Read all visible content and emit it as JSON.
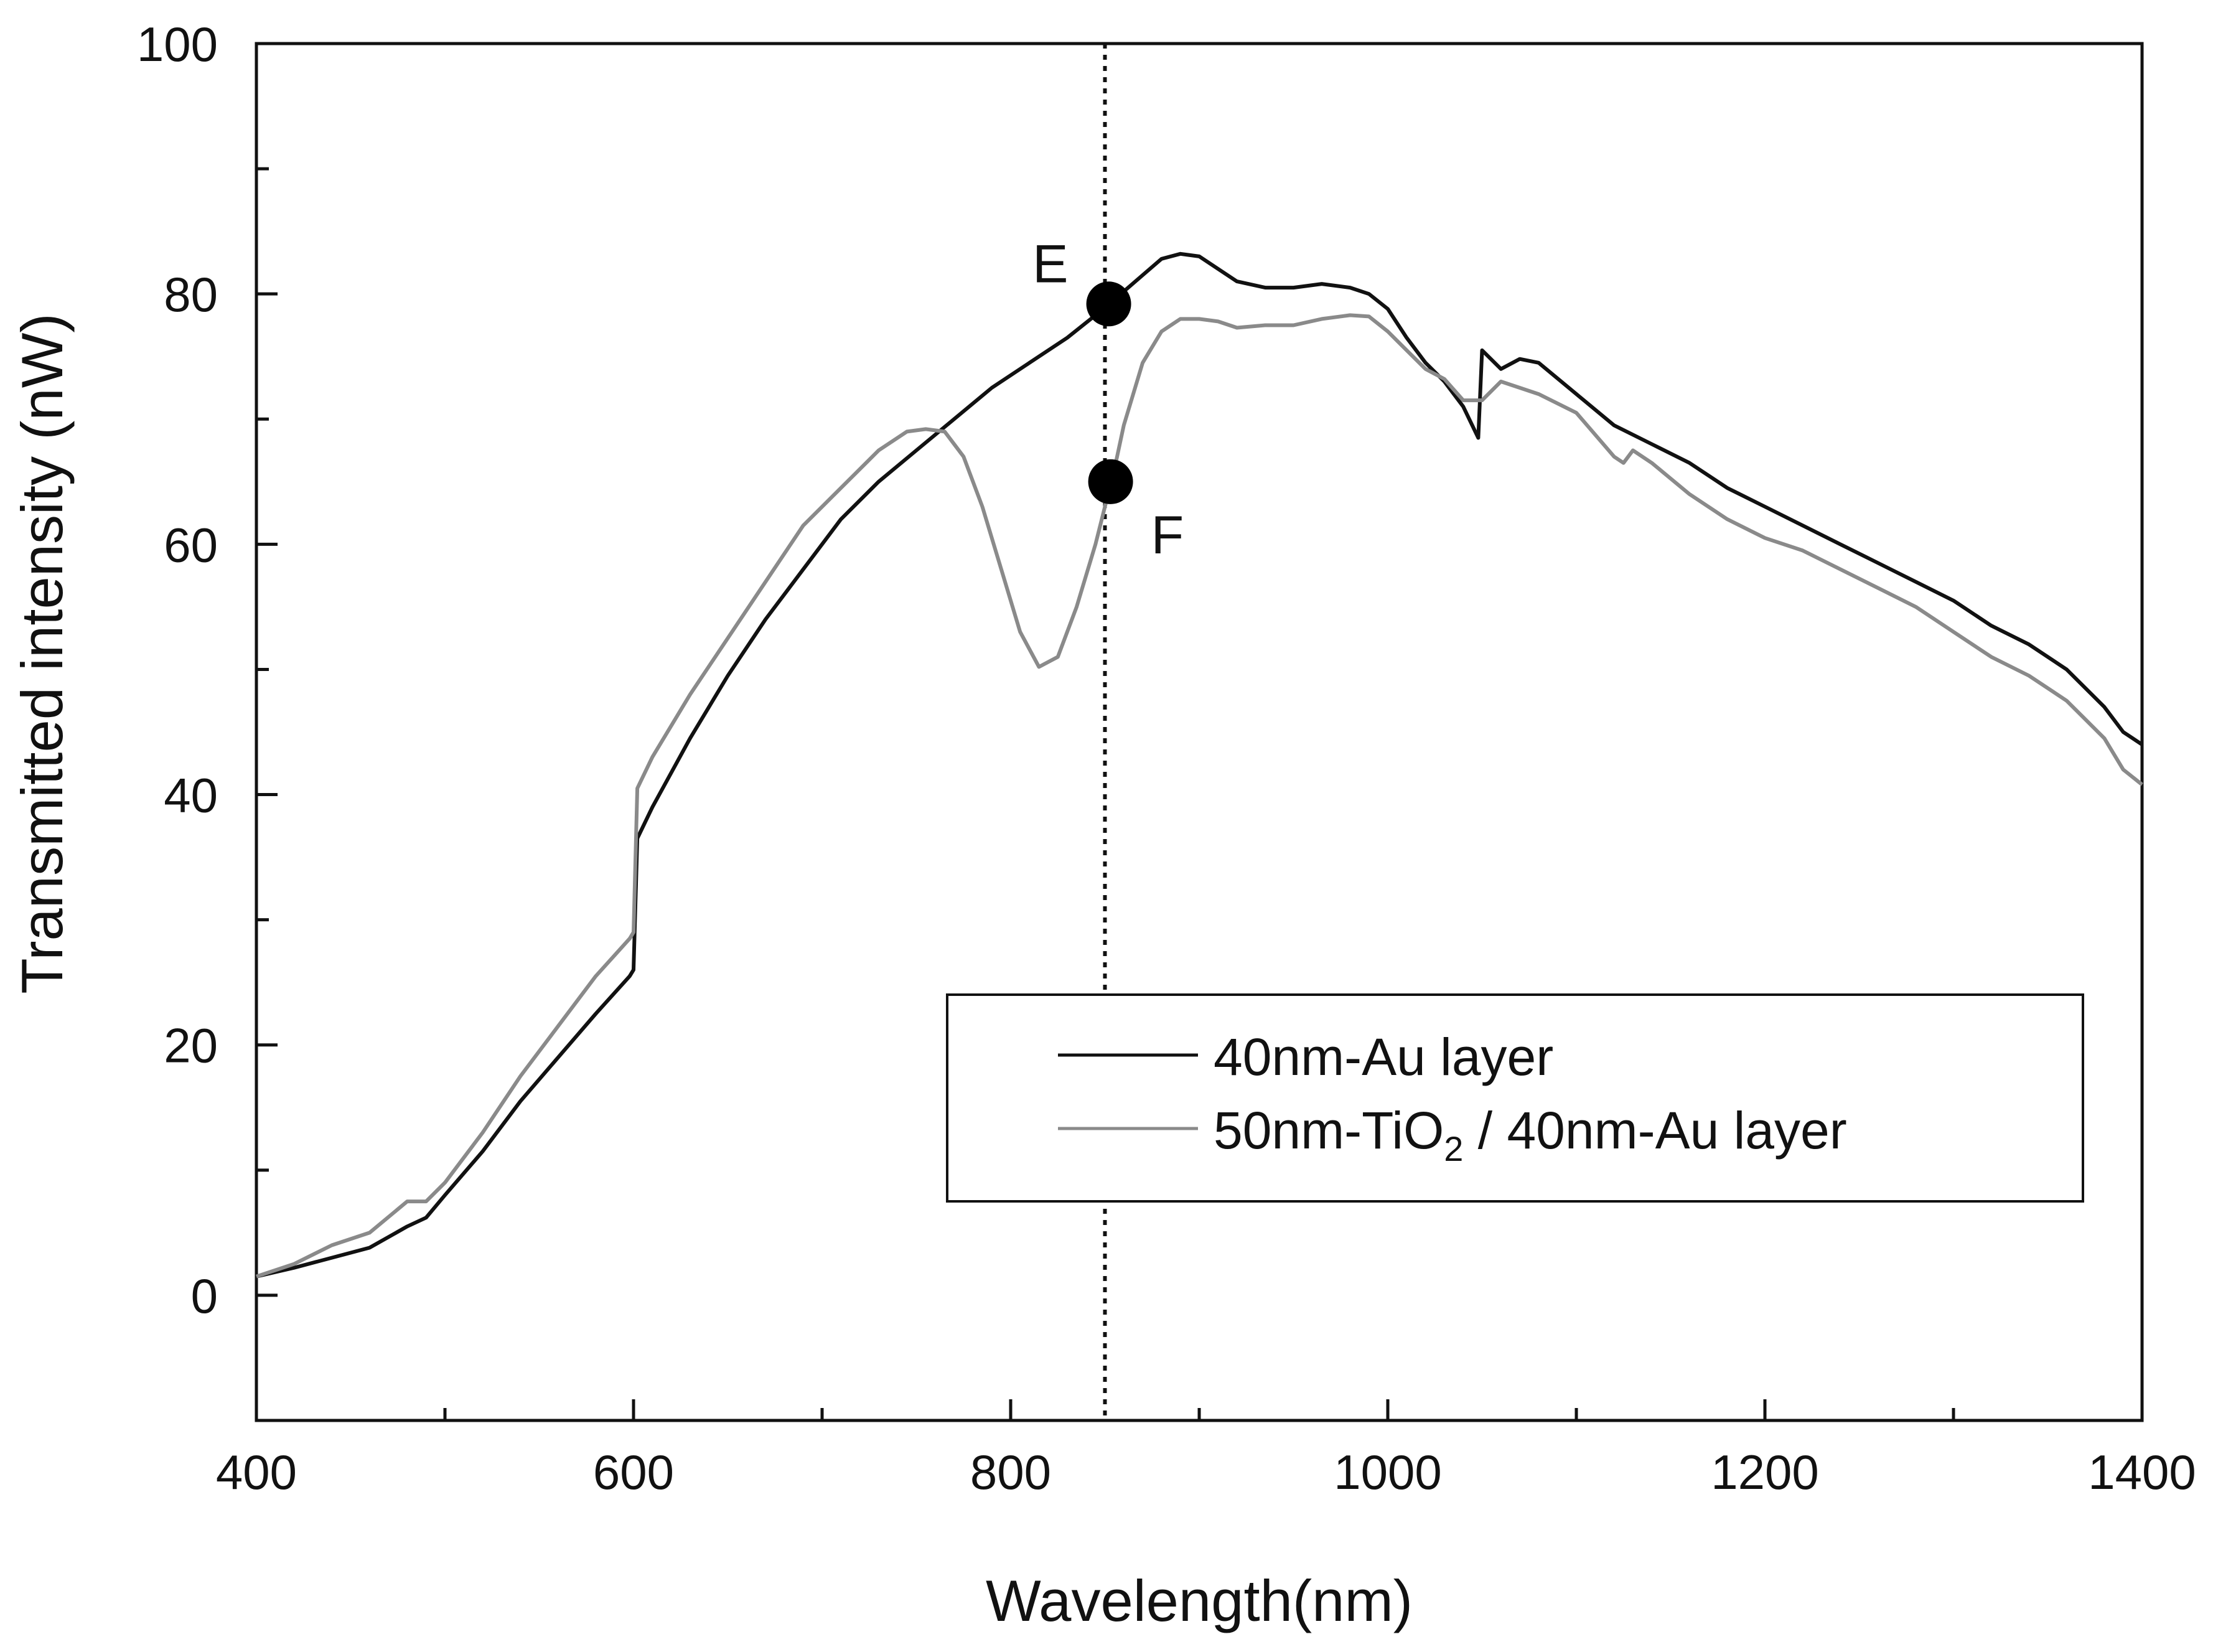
{
  "chart_data": {
    "type": "line",
    "title": "",
    "xlabel": "Wavelength(nm)",
    "ylabel": "Transmitted intensity (nW)",
    "xlim": [
      400,
      1400
    ],
    "ylim": [
      -10,
      100
    ],
    "xticks": [
      400,
      600,
      800,
      1000,
      1200,
      1400
    ],
    "yticks": [
      0,
      20,
      40,
      60,
      80,
      100
    ],
    "x_minor_step": 100,
    "y_minor_step": 10,
    "grid": false,
    "legend_position": "lower-right",
    "series": [
      {
        "name": "40nm-Au layer",
        "legend_label": "40nm-Au layer",
        "color": "#111111",
        "points": [
          [
            400,
            1.5
          ],
          [
            420,
            2.2
          ],
          [
            440,
            3
          ],
          [
            460,
            3.8
          ],
          [
            480,
            5.5
          ],
          [
            490,
            6.2
          ],
          [
            500,
            8
          ],
          [
            520,
            11.5
          ],
          [
            540,
            15.5
          ],
          [
            560,
            19
          ],
          [
            580,
            22.5
          ],
          [
            598,
            25.5
          ],
          [
            600,
            26
          ],
          [
            602,
            36.5
          ],
          [
            610,
            39
          ],
          [
            630,
            44.5
          ],
          [
            650,
            49.5
          ],
          [
            670,
            54
          ],
          [
            690,
            58
          ],
          [
            710,
            62
          ],
          [
            730,
            65
          ],
          [
            750,
            67.5
          ],
          [
            770,
            70
          ],
          [
            790,
            72.5
          ],
          [
            810,
            74.5
          ],
          [
            830,
            76.5
          ],
          [
            845,
            78.3
          ],
          [
            850,
            79.2
          ],
          [
            860,
            80.2
          ],
          [
            870,
            81.5
          ],
          [
            880,
            82.8
          ],
          [
            890,
            83.2
          ],
          [
            900,
            83
          ],
          [
            910,
            82
          ],
          [
            920,
            81
          ],
          [
            935,
            80.5
          ],
          [
            950,
            80.5
          ],
          [
            965,
            80.8
          ],
          [
            980,
            80.5
          ],
          [
            990,
            80
          ],
          [
            1000,
            78.8
          ],
          [
            1010,
            76.5
          ],
          [
            1020,
            74.5
          ],
          [
            1030,
            73
          ],
          [
            1040,
            71
          ],
          [
            1048,
            68.5
          ],
          [
            1050,
            75.5
          ],
          [
            1060,
            74
          ],
          [
            1070,
            74.8
          ],
          [
            1080,
            74.5
          ],
          [
            1100,
            72
          ],
          [
            1120,
            69.5
          ],
          [
            1140,
            68
          ],
          [
            1160,
            66.5
          ],
          [
            1180,
            64.5
          ],
          [
            1200,
            63
          ],
          [
            1220,
            61.5
          ],
          [
            1240,
            60
          ],
          [
            1260,
            58.5
          ],
          [
            1280,
            57
          ],
          [
            1300,
            55.5
          ],
          [
            1320,
            53.5
          ],
          [
            1340,
            52
          ],
          [
            1360,
            50
          ],
          [
            1370,
            48.5
          ],
          [
            1380,
            47
          ],
          [
            1390,
            45
          ],
          [
            1400,
            44
          ]
        ]
      },
      {
        "name": "50nm-TiO2 / 40nm-Au layer",
        "legend_label": "50nm-TiO",
        "legend_label_subscript": "2",
        "legend_label_suffix": " / 40nm-Au layer",
        "color": "#8a8a8a",
        "points": [
          [
            400,
            1.5
          ],
          [
            420,
            2.5
          ],
          [
            440,
            4
          ],
          [
            460,
            5
          ],
          [
            480,
            7.5
          ],
          [
            490,
            7.5
          ],
          [
            500,
            9
          ],
          [
            520,
            13
          ],
          [
            540,
            17.5
          ],
          [
            560,
            21.5
          ],
          [
            580,
            25.5
          ],
          [
            598,
            28.5
          ],
          [
            600,
            29
          ],
          [
            602,
            40.5
          ],
          [
            610,
            43
          ],
          [
            630,
            48
          ],
          [
            650,
            52.5
          ],
          [
            670,
            57
          ],
          [
            690,
            61.5
          ],
          [
            710,
            64.5
          ],
          [
            730,
            67.5
          ],
          [
            745,
            69
          ],
          [
            755,
            69.2
          ],
          [
            765,
            69
          ],
          [
            775,
            67
          ],
          [
            785,
            63
          ],
          [
            795,
            58
          ],
          [
            805,
            53
          ],
          [
            815,
            50.2
          ],
          [
            825,
            51
          ],
          [
            835,
            55
          ],
          [
            845,
            60
          ],
          [
            850,
            63
          ],
          [
            855,
            66
          ],
          [
            860,
            69.5
          ],
          [
            870,
            74.5
          ],
          [
            880,
            77
          ],
          [
            890,
            78
          ],
          [
            900,
            78
          ],
          [
            910,
            77.8
          ],
          [
            920,
            77.3
          ],
          [
            935,
            77.5
          ],
          [
            950,
            77.5
          ],
          [
            965,
            78
          ],
          [
            980,
            78.3
          ],
          [
            990,
            78.2
          ],
          [
            1000,
            77
          ],
          [
            1010,
            75.5
          ],
          [
            1020,
            74
          ],
          [
            1030,
            73.2
          ],
          [
            1040,
            71.5
          ],
          [
            1050,
            71.5
          ],
          [
            1060,
            73
          ],
          [
            1070,
            72.5
          ],
          [
            1080,
            72
          ],
          [
            1100,
            70.5
          ],
          [
            1120,
            67
          ],
          [
            1125,
            66.5
          ],
          [
            1130,
            67.5
          ],
          [
            1140,
            66.5
          ],
          [
            1160,
            64
          ],
          [
            1180,
            62
          ],
          [
            1200,
            60.5
          ],
          [
            1220,
            59.5
          ],
          [
            1240,
            58
          ],
          [
            1260,
            56.5
          ],
          [
            1280,
            55
          ],
          [
            1300,
            53
          ],
          [
            1320,
            51
          ],
          [
            1340,
            49.5
          ],
          [
            1360,
            47.5
          ],
          [
            1370,
            46
          ],
          [
            1380,
            44.5
          ],
          [
            1390,
            42
          ],
          [
            1400,
            40.8
          ]
        ]
      }
    ],
    "reference_line": {
      "x": 850,
      "style": "dotted"
    },
    "annotations": [
      {
        "label": "E",
        "x": 852,
        "y": 79.2,
        "label_side": "upper-left"
      },
      {
        "label": "F",
        "x": 853,
        "y": 65,
        "label_side": "lower-right"
      }
    ]
  }
}
